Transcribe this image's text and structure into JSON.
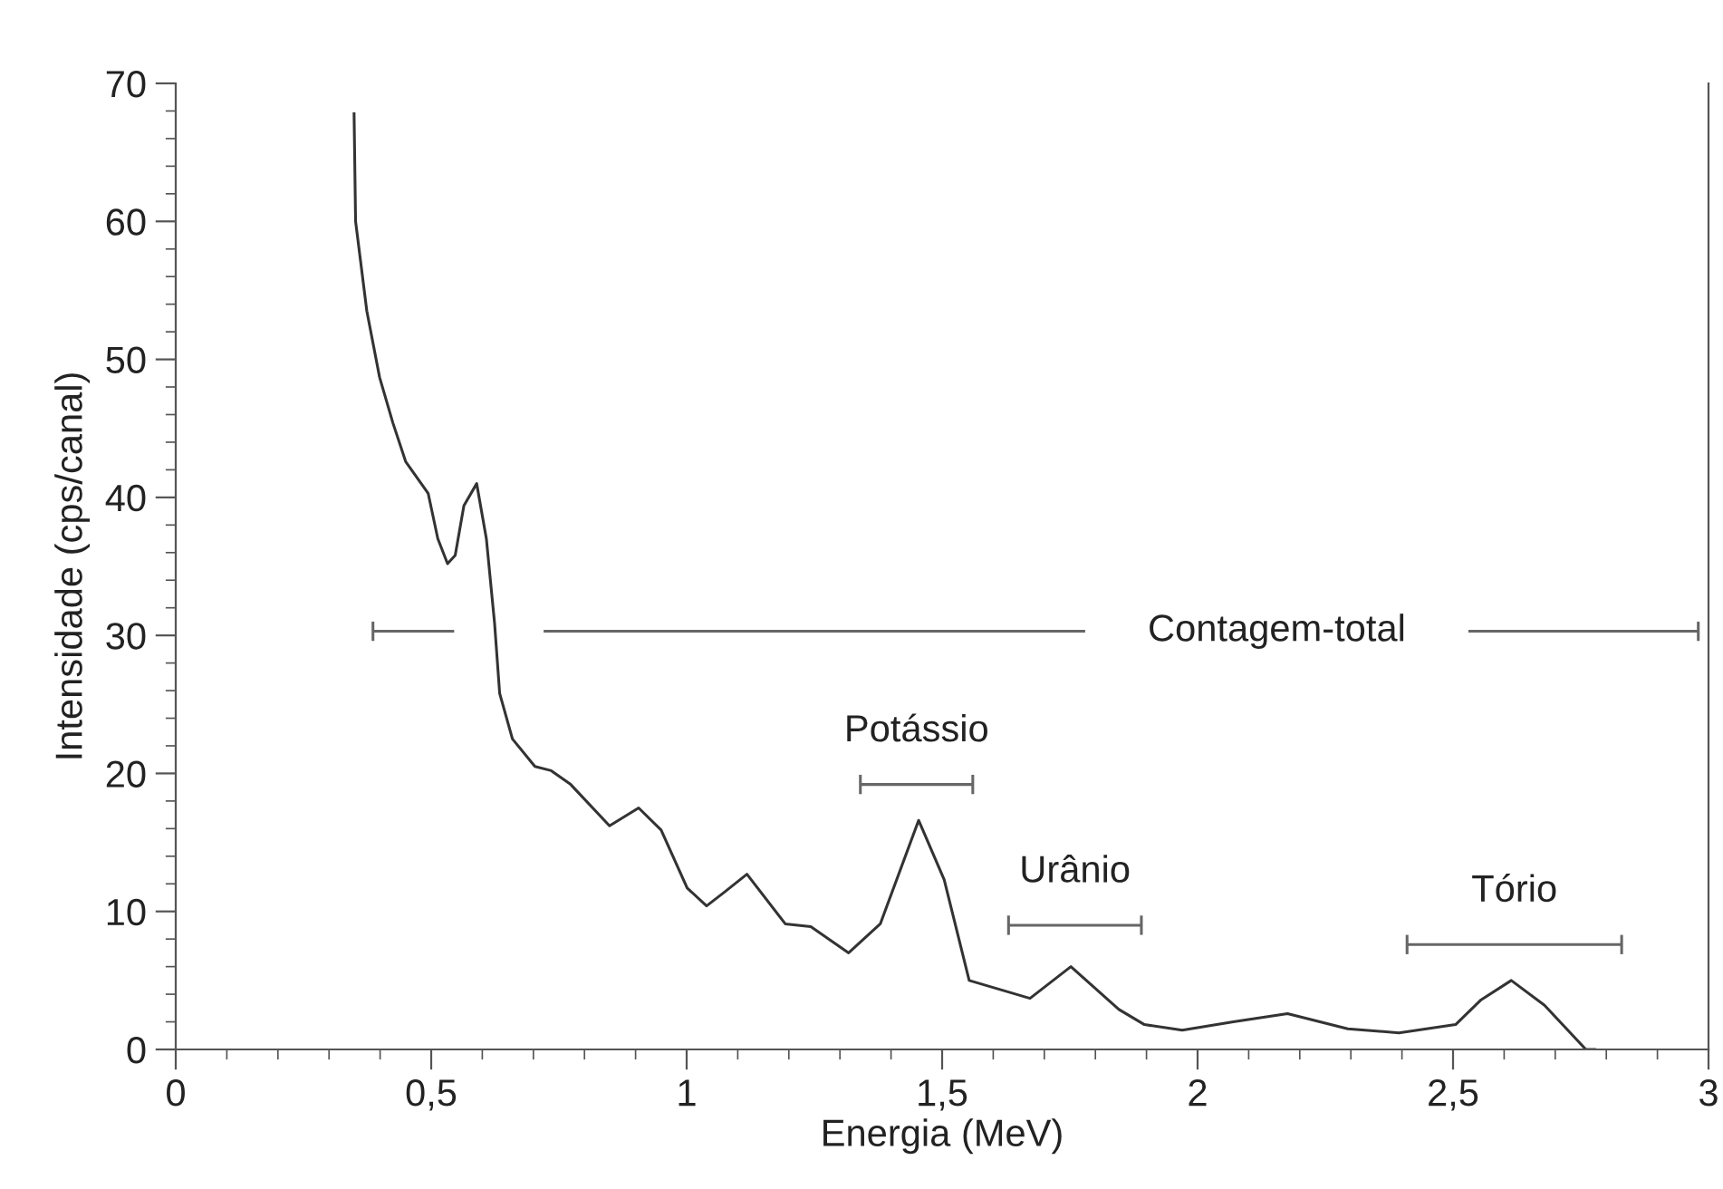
{
  "chart_data": {
    "type": "line",
    "xlabel": "Energia (MeV)",
    "ylabel": "Intensidade (cps/canal)",
    "xlim": [
      0,
      3
    ],
    "ylim": [
      0,
      70
    ],
    "xticks": [
      0,
      {
        "value": 0.5,
        "label": "0,5"
      },
      1,
      {
        "value": 1.5,
        "label": "1,5"
      },
      2,
      {
        "value": 2.5,
        "label": "2,5"
      },
      3
    ],
    "yticks": [
      0,
      10,
      20,
      30,
      40,
      50,
      60,
      70
    ],
    "grid": false,
    "legend": false,
    "marker": "none",
    "line_style": "solid",
    "series": [
      {
        "color": "#333333",
        "x": [
          0.349,
          0.352,
          0.374,
          0.399,
          0.425,
          0.45,
          0.494,
          0.513,
          0.532,
          0.547,
          0.564,
          0.589,
          0.608,
          0.624,
          0.634,
          0.659,
          0.703,
          0.735,
          0.773,
          0.849,
          0.906,
          0.95,
          1.001,
          1.039,
          1.074,
          1.118,
          1.193,
          1.243,
          1.317,
          1.379,
          1.454,
          1.504,
          1.553,
          1.672,
          1.752,
          1.846,
          1.896,
          1.97,
          2.07,
          2.176,
          2.294,
          2.394,
          2.505,
          2.555,
          2.614,
          2.679,
          2.76,
          2.78
        ],
        "values": [
          67.9,
          60.0,
          53.5,
          48.7,
          45.4,
          42.6,
          40.3,
          37.0,
          35.2,
          35.8,
          39.4,
          41.0,
          37.0,
          30.9,
          25.8,
          22.5,
          20.5,
          20.2,
          19.2,
          16.2,
          17.5,
          15.9,
          11.7,
          10.4,
          11.4,
          12.7,
          9.1,
          8.9,
          7.0,
          9.1,
          16.6,
          12.3,
          5.0,
          3.7,
          6.0,
          2.9,
          1.8,
          1.4,
          2.0,
          2.6,
          1.5,
          1.2,
          1.8,
          3.6,
          5.0,
          3.2,
          0.0,
          0.0
        ]
      },
      {
        "name": "Contagem-total",
        "color": "#666666",
        "x": [
          0.386,
          0.545,
          0.6,
          0.72,
          1.78,
          1.9,
          2.53,
          2.98
        ],
        "values": [
          30.3,
          30.3,
          null,
          30.3,
          30.3,
          null,
          30.3,
          30.3
        ]
      },
      {
        "name": "Potássio",
        "color": "#666666",
        "x": [
          1.34,
          1.56
        ],
        "values": [
          19.2,
          19.2
        ]
      },
      {
        "name": "Urânio",
        "color": "#666666",
        "x": [
          1.63,
          1.89
        ],
        "values": [
          9.0,
          9.0
        ]
      },
      {
        "name": "Tório",
        "color": "#666666",
        "x": [
          2.41,
          2.83
        ],
        "values": [
          7.6,
          7.6
        ]
      }
    ]
  }
}
